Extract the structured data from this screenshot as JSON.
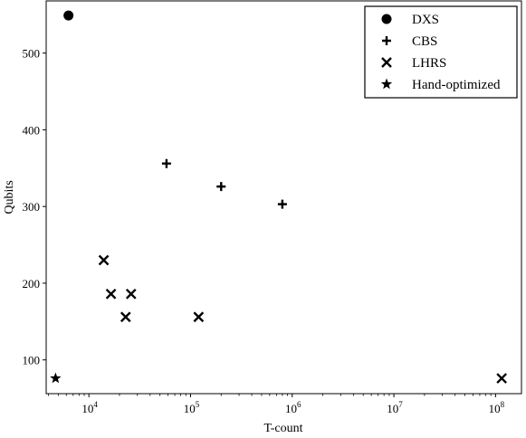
{
  "chart_data": {
    "type": "scatter",
    "title": "",
    "xlabel": "T-count",
    "ylabel": "Qubits",
    "x_scale": "log",
    "xlim": [
      3800,
      180000000
    ],
    "ylim": [
      56,
      568
    ],
    "x_ticks": [
      {
        "value": 10000,
        "base": "10",
        "exp": "4"
      },
      {
        "value": 100000,
        "base": "10",
        "exp": "5"
      },
      {
        "value": 1000000,
        "base": "10",
        "exp": "6"
      },
      {
        "value": 10000000,
        "base": "10",
        "exp": "7"
      },
      {
        "value": 100000000,
        "base": "10",
        "exp": "8"
      }
    ],
    "y_ticks": [
      100,
      200,
      300,
      400,
      500
    ],
    "grid": false,
    "legend_position": "top-right",
    "series": [
      {
        "name": "DXS",
        "marker": "circle",
        "points": [
          {
            "x": 6300,
            "y": 549
          }
        ]
      },
      {
        "name": "CBS",
        "marker": "plus",
        "points": [
          {
            "x": 58000,
            "y": 356
          },
          {
            "x": 200000,
            "y": 326
          },
          {
            "x": 800000,
            "y": 303
          }
        ]
      },
      {
        "name": "LHRS",
        "marker": "x",
        "points": [
          {
            "x": 14000,
            "y": 230
          },
          {
            "x": 16500,
            "y": 186
          },
          {
            "x": 26000,
            "y": 186
          },
          {
            "x": 23000,
            "y": 156
          },
          {
            "x": 120000,
            "y": 156
          },
          {
            "x": 115000000,
            "y": 76
          }
        ]
      },
      {
        "name": "Hand-optimized",
        "marker": "star",
        "points": [
          {
            "x": 4700,
            "y": 76
          }
        ]
      }
    ]
  }
}
